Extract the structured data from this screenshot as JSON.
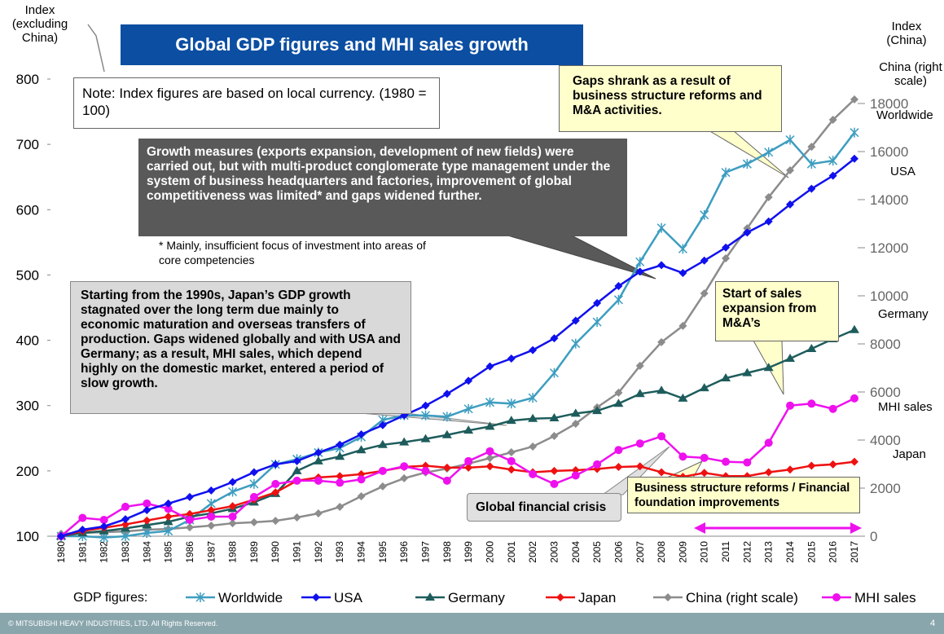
{
  "chart_data": {
    "type": "line",
    "title": "Global GDP figures and MHI sales growth",
    "y_label": "Index (excluding China)",
    "y2_label": "Index (China)",
    "legend_title": "GDP figures:",
    "annotations": [
      "Note: Index figures are based on local currency. (1980 = 100)",
      "Gaps shrank as a result of business structure reforms and M&A activities.",
      "Growth measures (exports expansion, development of new fields) were carried out, but with multi-product conglomerate type management under the system of business headquarters and factories, improvement of global competitiveness was limited* and gaps widened further.",
      "* Mainly, insufficient focus of investment into areas of core competencies",
      "Starting from the 1990s, Japan’s GDP growth stagnated over the long term due mainly to economic maturation and overseas transfers of production. Gaps widened globally and with USA and Germany; as a result, MHI sales, which depend highly on the domestic market, entered a period of slow growth.",
      "Start of sales expansion from M&A’s",
      "Global financial crisis",
      "Business structure reforms / Financial foundation improvements"
    ],
    "footer": "© MITSUBISHI HEAVY INDUSTRIES, LTD.  All Rights Reserved.",
    "page_number": "4",
    "categories": [
      "1980",
      "1981",
      "1982",
      "1983",
      "1984",
      "1985",
      "1986",
      "1987",
      "1988",
      "1989",
      "1990",
      "1991",
      "1992",
      "1993",
      "1994",
      "1995",
      "1996",
      "1997",
      "1998",
      "1999",
      "2000",
      "2001",
      "2002",
      "2003",
      "2004",
      "2005",
      "2006",
      "2007",
      "2008",
      "2009",
      "2010",
      "2011",
      "2012",
      "2013",
      "2014",
      "2015",
      "2016",
      "2017"
    ],
    "ylim": [
      100,
      800
    ],
    "yticks": [
      100,
      200,
      300,
      400,
      500,
      600,
      700,
      800
    ],
    "y2lim": [
      0,
      18000
    ],
    "y2ticks": [
      0,
      2000,
      4000,
      6000,
      8000,
      10000,
      12000,
      14000,
      16000,
      18000
    ],
    "series": [
      {
        "name": "Worldwide",
        "color": "#3d9dc0",
        "marker": "star",
        "values": [
          100,
          100,
          98,
          100,
          105,
          108,
          125,
          150,
          168,
          180,
          210,
          218,
          228,
          235,
          252,
          278,
          285,
          285,
          283,
          295,
          305,
          303,
          312,
          350,
          395,
          428,
          462,
          520,
          572,
          540,
          592,
          657,
          670,
          688,
          707,
          670,
          675,
          718
        ]
      },
      {
        "name": "USA",
        "color": "#1010ee",
        "marker": "diamond",
        "values": [
          100,
          110,
          115,
          126,
          140,
          150,
          160,
          170,
          183,
          198,
          210,
          215,
          228,
          240,
          256,
          270,
          285,
          300,
          318,
          338,
          360,
          372,
          385,
          403,
          430,
          457,
          483,
          505,
          515,
          503,
          522,
          542,
          565,
          582,
          608,
          632,
          652,
          678
        ]
      },
      {
        "name": "Germany",
        "color": "#1e5c5c",
        "marker": "triangle",
        "values": [
          100,
          105,
          108,
          112,
          117,
          122,
          130,
          135,
          142,
          152,
          165,
          200,
          215,
          222,
          232,
          240,
          244,
          249,
          255,
          262,
          268,
          277,
          280,
          281,
          288,
          292,
          303,
          318,
          323,
          311,
          327,
          342,
          350,
          358,
          372,
          387,
          402,
          416
        ]
      },
      {
        "name": "Japan",
        "color": "#ee1111",
        "marker": "diamond",
        "values": [
          100,
          108,
          113,
          118,
          124,
          130,
          134,
          140,
          146,
          156,
          167,
          185,
          190,
          192,
          195,
          200,
          206,
          208,
          205,
          205,
          207,
          202,
          198,
          200,
          201,
          203,
          206,
          207,
          198,
          191,
          197,
          192,
          192,
          198,
          202,
          208,
          210,
          214
        ]
      },
      {
        "name": "China (right scale)",
        "color": "#8c8c8c",
        "marker": "diamond",
        "axis": "y2",
        "values": [
          100,
          135,
          170,
          200,
          270,
          300,
          370,
          440,
          540,
          580,
          640,
          780,
          950,
          1220,
          1660,
          2070,
          2410,
          2650,
          2810,
          3020,
          3250,
          3490,
          3730,
          4170,
          4680,
          5360,
          5970,
          7090,
          8070,
          8750,
          10100,
          11560,
          12810,
          14100,
          15220,
          16200,
          17320,
          18170
        ]
      },
      {
        "name": "MHI sales",
        "color": "#ee11ee",
        "marker": "circle",
        "values": [
          100,
          128,
          125,
          145,
          150,
          142,
          125,
          130,
          130,
          160,
          180,
          185,
          185,
          182,
          187,
          200,
          207,
          200,
          185,
          215,
          230,
          215,
          195,
          180,
          193,
          210,
          232,
          242,
          253,
          222,
          220,
          214,
          213,
          243,
          300,
          303,
          295,
          311
        ]
      }
    ]
  }
}
